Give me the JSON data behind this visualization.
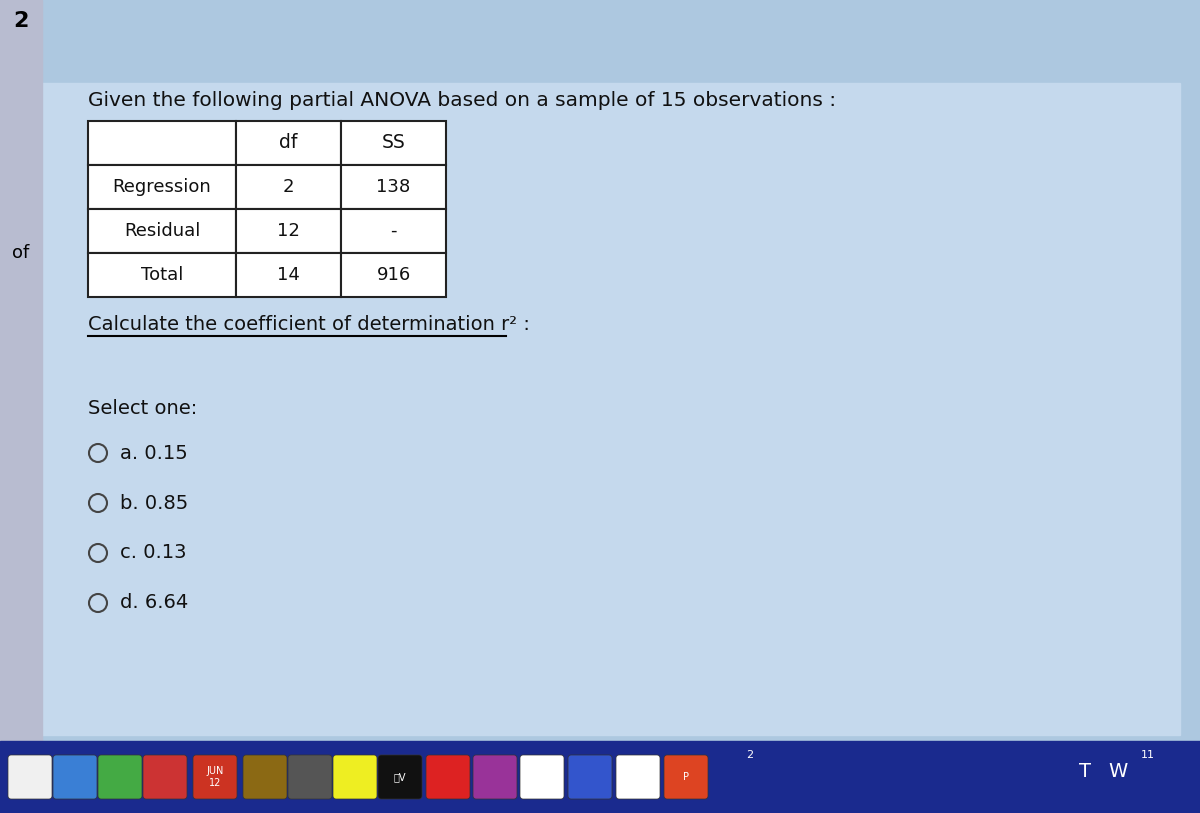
{
  "title": "Given the following partial ANOVA based on a sample of 15 observations :",
  "table_headers": [
    "",
    "df",
    "SS"
  ],
  "table_rows": [
    [
      "Regression",
      "2",
      "138"
    ],
    [
      "Residual",
      "12",
      "-"
    ],
    [
      "Total",
      "14",
      "916"
    ]
  ],
  "question": "Calculate the coefficient of determination r² :",
  "select_label": "Select one:",
  "options": [
    "a. 0.15",
    "b. 0.85",
    "c. 0.13",
    "d. 6.64"
  ],
  "bg_color": "#adc8e0",
  "card_color": "#c8dff0",
  "taskbar_color": "#1a2a8e",
  "left_strip_color": "#b8bcd0",
  "table_border_color": "#222222",
  "text_color": "#111111",
  "number_left": "2",
  "number_bottom_left": "of"
}
